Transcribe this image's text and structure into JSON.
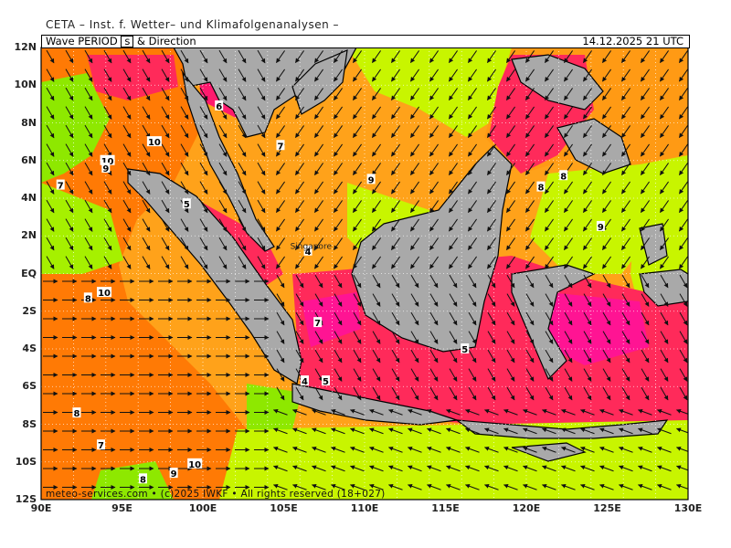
{
  "header": {
    "institute": "CETA – Inst. f. Wetter– und Klimafolgenanalysen –",
    "parameter_prefix": "Wave PERIOD",
    "unit": "s",
    "parameter_suffix": "& Direction",
    "datetime": "14.12.2025 21 UTC"
  },
  "axes": {
    "lat_labels": [
      "12N",
      "10N",
      "8N",
      "6N",
      "4N",
      "2N",
      "EQ",
      "2S",
      "4S",
      "6S",
      "8S",
      "10S",
      "12S"
    ],
    "lon_labels": [
      "90E",
      "95E",
      "100E",
      "105E",
      "110E",
      "115E",
      "120E",
      "125E",
      "130E"
    ]
  },
  "contour_labels": [
    {
      "text": "6",
      "lon": 101.0,
      "lat": 8.9
    },
    {
      "text": "7",
      "lon": 104.8,
      "lat": 6.8
    },
    {
      "text": "10",
      "lon": 97.0,
      "lat": 7.0
    },
    {
      "text": "10",
      "lon": 94.1,
      "lat": 6.0
    },
    {
      "text": "9",
      "lon": 94.0,
      "lat": 5.6
    },
    {
      "text": "7",
      "lon": 91.2,
      "lat": 4.7
    },
    {
      "text": "5",
      "lon": 99.0,
      "lat": 3.7
    },
    {
      "text": "9",
      "lon": 110.4,
      "lat": 5.0
    },
    {
      "text": "8",
      "lon": 120.9,
      "lat": 4.6
    },
    {
      "text": "8",
      "lon": 122.3,
      "lat": 5.2
    },
    {
      "text": "9",
      "lon": 124.6,
      "lat": 2.5
    },
    {
      "text": "4",
      "lon": 106.5,
      "lat": 1.2
    },
    {
      "text": "10",
      "lon": 93.9,
      "lat": -1.0
    },
    {
      "text": "8",
      "lon": 92.9,
      "lat": -1.3
    },
    {
      "text": "7",
      "lon": 107.1,
      "lat": -2.6
    },
    {
      "text": "5",
      "lon": 116.2,
      "lat": -4.0
    },
    {
      "text": "4",
      "lon": 106.3,
      "lat": -5.7
    },
    {
      "text": "5",
      "lon": 107.6,
      "lat": -5.7
    },
    {
      "text": "8",
      "lon": 92.2,
      "lat": -7.4
    },
    {
      "text": "7",
      "lon": 93.7,
      "lat": -9.1
    },
    {
      "text": "10",
      "lon": 99.5,
      "lat": -10.1
    },
    {
      "text": "9",
      "lon": 98.2,
      "lat": -10.6
    },
    {
      "text": "8",
      "lon": 96.3,
      "lat": -10.9
    }
  ],
  "place_labels": [
    {
      "text": "Singapore",
      "lon": 105.4,
      "lat": 1.3
    }
  ],
  "colors": {
    "p10": "#ff6e00",
    "p9": "#ff9a14",
    "p8": "#ffb21e",
    "p7": "#8ee800",
    "p6": "#c8f500",
    "p5": "#ff2a5a",
    "p4": "#ff1493",
    "p3": "#ff00c8",
    "land": "#a9a9a9"
  },
  "footer": {
    "copyright": "meteo-services.com • (c)2025 IWKF • All rights reserved (18+027)"
  }
}
